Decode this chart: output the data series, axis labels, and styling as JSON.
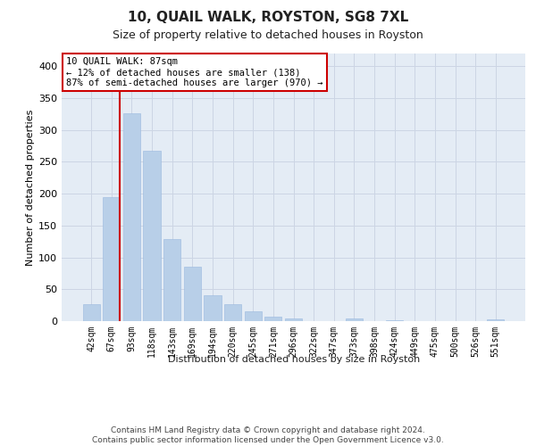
{
  "title": "10, QUAIL WALK, ROYSTON, SG8 7XL",
  "subtitle": "Size of property relative to detached houses in Royston",
  "xlabel": "Distribution of detached houses by size in Royston",
  "ylabel": "Number of detached properties",
  "bar_values": [
    26,
    194,
    326,
    267,
    129,
    86,
    40,
    27,
    16,
    7,
    4,
    0,
    0,
    4,
    0,
    2,
    0,
    0,
    0,
    0,
    3
  ],
  "bar_labels": [
    "42sqm",
    "67sqm",
    "93sqm",
    "118sqm",
    "143sqm",
    "169sqm",
    "194sqm",
    "220sqm",
    "245sqm",
    "271sqm",
    "296sqm",
    "322sqm",
    "347sqm",
    "373sqm",
    "398sqm",
    "424sqm",
    "449sqm",
    "475sqm",
    "500sqm",
    "526sqm",
    "551sqm"
  ],
  "bar_color": "#b8cfe8",
  "bar_edge_color": "#9ab8de",
  "vline_color": "#cc0000",
  "vline_x": 1.425,
  "annotation_line1": "10 QUAIL WALK: 87sqm",
  "annotation_line2": "← 12% of detached houses are smaller (138)",
  "annotation_line3": "87% of semi-detached houses are larger (970) →",
  "annotation_box_color": "#ffffff",
  "annotation_box_edge_color": "#cc0000",
  "ylim": [
    0,
    420
  ],
  "yticks": [
    0,
    50,
    100,
    150,
    200,
    250,
    300,
    350,
    400
  ],
  "grid_color": "#ccd5e4",
  "background_color": "#e4ecf5",
  "footer_text": "Contains HM Land Registry data © Crown copyright and database right 2024.\nContains public sector information licensed under the Open Government Licence v3.0."
}
